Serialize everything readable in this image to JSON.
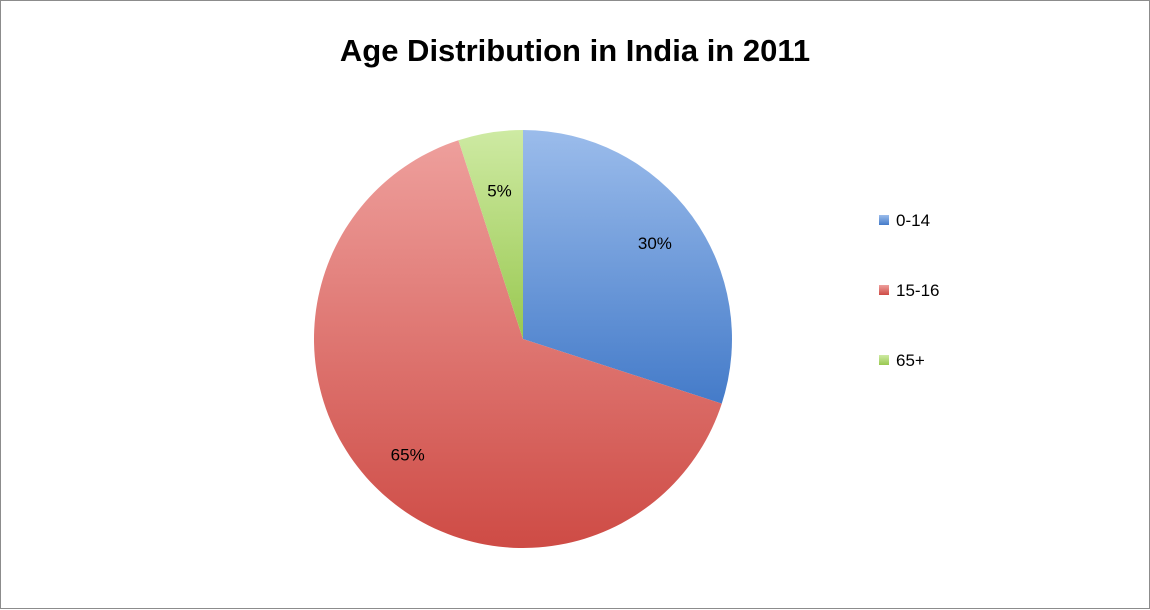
{
  "chart_data": {
    "type": "pie",
    "title": "Age Distribution in India in 2011",
    "categories": [
      "0-14",
      "15-16",
      "65+"
    ],
    "values": [
      30,
      65,
      5
    ],
    "data_labels": [
      "30%",
      "65%",
      "5%"
    ],
    "colors": [
      "#4a86db",
      "#e0514b",
      "#a6d957"
    ],
    "legend_position": "right",
    "start_angle": "12 o'clock, clockwise"
  }
}
